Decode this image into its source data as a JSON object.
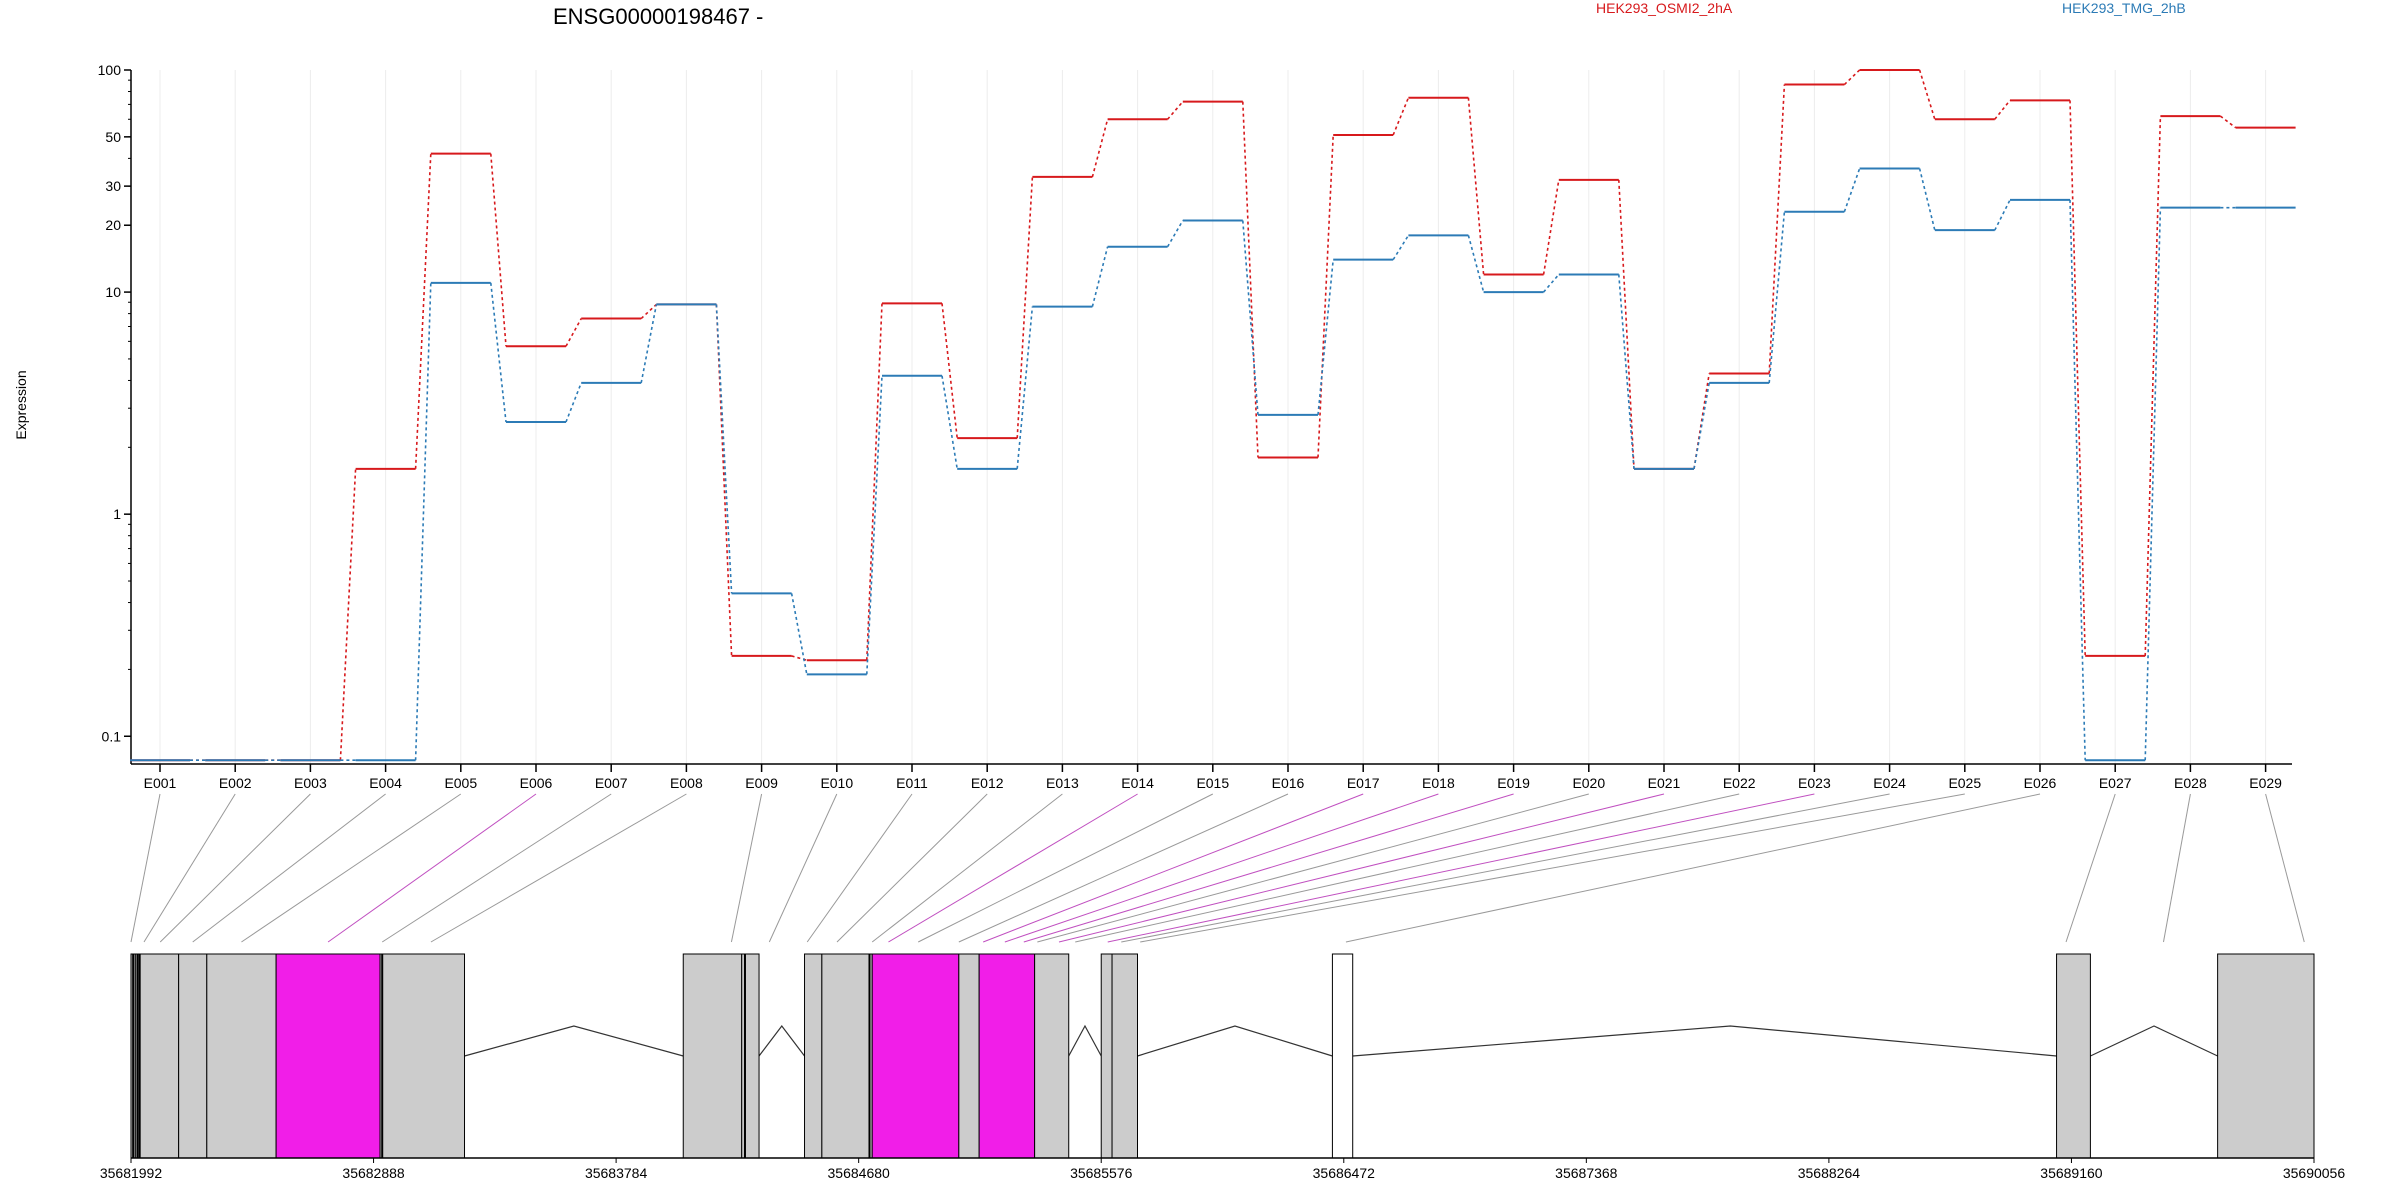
{
  "title": "ENSG00000198467 -",
  "ylabel": "Expression",
  "legend": [
    {
      "name": "HEK293_OSMI2_2hA",
      "color": "#d7191c"
    },
    {
      "name": "HEK293_TMG_2hB",
      "color": "#2c7bb6"
    }
  ],
  "colors": {
    "exon_fill": "#cccccc",
    "highlight_fill": "#f11ee8",
    "outline": "#000000",
    "link_gray": "#999999",
    "link_magenta": "#c050c0"
  },
  "chart_data": {
    "type": "line",
    "y_scale": "log",
    "ylim": [
      0.075,
      100
    ],
    "yticks": [
      0.1,
      1,
      10,
      20,
      30,
      50,
      100
    ],
    "ytick_labels": [
      "0.1",
      "1",
      "10",
      "20",
      "30",
      "50",
      "100"
    ],
    "categories": [
      "E001",
      "E002",
      "E003",
      "E004",
      "E005",
      "E006",
      "E007",
      "E008",
      "E009",
      "E010",
      "E011",
      "E012",
      "E013",
      "E014",
      "E015",
      "E016",
      "E017",
      "E018",
      "E019",
      "E020",
      "E021",
      "E022",
      "E023",
      "E024",
      "E025",
      "E026",
      "E027",
      "E028",
      "E029"
    ],
    "series": [
      {
        "name": "HEK293_OSMI2_2hA",
        "color": "#d7191c",
        "values": [
          0.078,
          0.078,
          0.078,
          1.6,
          42,
          5.7,
          7.6,
          8.8,
          0.23,
          0.22,
          8.9,
          2.2,
          33,
          60,
          72,
          1.8,
          51,
          75,
          12,
          32,
          1.6,
          4.3,
          86,
          100,
          60,
          73,
          0.23,
          62,
          55
        ]
      },
      {
        "name": "HEK293_TMG_2hB",
        "color": "#2c7bb6",
        "values": [
          0.078,
          0.078,
          0.078,
          0.078,
          11,
          2.6,
          3.9,
          8.8,
          0.44,
          0.19,
          4.2,
          1.6,
          8.6,
          16,
          21,
          2.8,
          14,
          18,
          10,
          12,
          1.6,
          3.9,
          23,
          36,
          19,
          26,
          0.078,
          24,
          24
        ]
      }
    ]
  },
  "gene_model": {
    "coord_range": [
      35681992,
      35690056
    ],
    "axis_ticks": [
      35681992,
      35682888,
      35683784,
      35684680,
      35685576,
      35686472,
      35687368,
      35688264,
      35689160,
      35690056
    ],
    "axis_tick_labels": [
      "35681992",
      "35682888",
      "35683784",
      "35684680",
      "35685576",
      "35686472",
      "35687368",
      "35688264",
      "35689160",
      "35690056"
    ],
    "exon_blocks": [
      [
        35681992,
        35682008,
        "gray"
      ],
      [
        35682008,
        35682168,
        "gray"
      ],
      [
        35682168,
        35682272,
        "gray"
      ],
      [
        35682272,
        35682528,
        "gray"
      ],
      [
        35682528,
        35682912,
        "magenta"
      ],
      [
        35682912,
        35683224,
        "gray"
      ],
      [
        35684032,
        35684248,
        "gray"
      ],
      [
        35684248,
        35684312,
        "gray"
      ],
      [
        35684480,
        35684544,
        "gray"
      ],
      [
        35684544,
        35684730,
        "gray"
      ],
      [
        35684730,
        35685050,
        "magenta"
      ],
      [
        35685050,
        35685125,
        "gray"
      ],
      [
        35685125,
        35685330,
        "magenta"
      ],
      [
        35685330,
        35685456,
        "gray"
      ],
      [
        35685576,
        35685616,
        "gray"
      ],
      [
        35685616,
        35685710,
        "gray"
      ],
      [
        35686430,
        35686505,
        "white"
      ],
      [
        35689105,
        35689230,
        "gray"
      ],
      [
        35689700,
        35690056,
        "gray"
      ]
    ],
    "sub_boundaries": [
      35682000,
      35682016,
      35682024,
      35682920,
      35684260,
      35684720
    ],
    "introns": [
      [
        35683224,
        35684032,
        35683628
      ],
      [
        35684312,
        35684480,
        35684396
      ],
      [
        35685330,
        35685456,
        35685393
      ],
      [
        35685456,
        35685576,
        35685516
      ],
      [
        35685710,
        35686430,
        35686070
      ],
      [
        35686505,
        35689105,
        35687900
      ],
      [
        35689230,
        35689700,
        35689465
      ]
    ],
    "exon_link_targets": [
      35681992,
      35682040,
      35682100,
      35682220,
      35682400,
      35682720,
      35682920,
      35683100,
      35684210,
      35684350,
      35684490,
      35684600,
      35684730,
      35684790,
      35684900,
      35685050,
      35685140,
      35685220,
      35685290,
      35685340,
      35685420,
      35685480,
      35685600,
      35685650,
      35685720,
      35686480,
      35689140,
      35689500,
      35690020
    ],
    "exon_link_colors": [
      "gray",
      "gray",
      "gray",
      "gray",
      "gray",
      "magenta",
      "gray",
      "gray",
      "gray",
      "gray",
      "gray",
      "gray",
      "gray",
      "magenta",
      "gray",
      "gray",
      "magenta",
      "magenta",
      "magenta",
      "gray",
      "magenta",
      "gray",
      "magenta",
      "gray",
      "gray",
      "gray",
      "gray",
      "gray",
      "gray"
    ]
  }
}
